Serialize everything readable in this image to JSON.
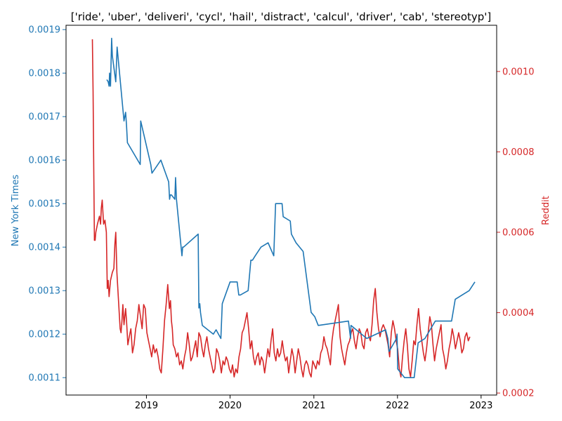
{
  "chart_data": {
    "type": "line",
    "title": "['ride', 'uber', 'deliveri', 'cycl', 'hail', 'distract', 'calcul', 'driver', 'cab', 'stereotyp']",
    "xlabel": "",
    "x_ticks": [
      "2019",
      "2020",
      "2021",
      "2022",
      "2023"
    ],
    "xlim": [
      "2018-01-15",
      "2023-03-10"
    ],
    "left_axis": {
      "label": "New York Times",
      "color": "#1f77b4",
      "ylim": [
        0.00106,
        0.00191
      ],
      "ticks": [
        "0.0011",
        "0.0012",
        "0.0013",
        "0.0014",
        "0.0015",
        "0.0016",
        "0.0017",
        "0.0018",
        "0.0019"
      ]
    },
    "right_axis": {
      "label": "Reddit",
      "color": "#d62728",
      "ylim": [
        0.000195,
        0.001115
      ],
      "ticks": [
        "0.0002",
        "0.0004",
        "0.0006",
        "0.0008",
        "0.0010"
      ]
    },
    "grid": false,
    "series": [
      {
        "name": "New York Times",
        "axis": "left",
        "color": "#1f77b4",
        "x": [
          "2018-07-12",
          "2018-07-18",
          "2018-07-22",
          "2018-07-24",
          "2018-07-26",
          "2018-07-28",
          "2018-08-02",
          "2018-08-05",
          "2018-08-20",
          "2018-08-26",
          "2018-09-25",
          "2018-10-02",
          "2018-10-06",
          "2018-10-10",
          "2018-12-05",
          "2018-12-07",
          "2019-01-20",
          "2019-01-25",
          "2019-03-05",
          "2019-04-08",
          "2019-04-12",
          "2019-04-15",
          "2019-04-20",
          "2019-05-05",
          "2019-05-08",
          "2019-05-12",
          "2019-06-05",
          "2019-06-08",
          "2019-06-12",
          "2019-08-15",
          "2019-08-18",
          "2019-08-22",
          "2019-08-25",
          "2019-09-02",
          "2019-10-20",
          "2019-11-01",
          "2019-11-22",
          "2019-11-28",
          "2020-01-01",
          "2020-02-01",
          "2020-02-08",
          "2020-02-15",
          "2020-03-20",
          "2020-04-01",
          "2020-04-08",
          "2020-04-20",
          "2020-05-15",
          "2020-06-15",
          "2020-07-10",
          "2020-07-18",
          "2020-08-15",
          "2020-08-20",
          "2020-09-20",
          "2020-09-25",
          "2020-10-15",
          "2020-11-15",
          "2020-12-20",
          "2021-01-05",
          "2021-01-20",
          "2021-06-01",
          "2021-06-10",
          "2021-06-12",
          "2021-08-20",
          "2021-11-10",
          "2021-11-20",
          "2021-11-25",
          "2021-12-28",
          "2021-12-30",
          "2022-01-02",
          "2022-02-01",
          "2022-03-15",
          "2022-04-01",
          "2022-05-01",
          "2022-06-15",
          "2022-08-25",
          "2022-09-10",
          "2022-10-10",
          "2022-11-10",
          "2022-12-05"
        ],
        "y": [
          0.001785,
          0.00178,
          0.00177,
          0.0018,
          0.00178,
          0.00177,
          0.00188,
          0.00184,
          0.00178,
          0.00186,
          0.00169,
          0.00171,
          0.00168,
          0.00164,
          0.00159,
          0.00169,
          0.00159,
          0.00157,
          0.0016,
          0.00155,
          0.00151,
          0.00152,
          0.00152,
          0.00151,
          0.00156,
          0.00151,
          0.00138,
          0.0014,
          0.0014,
          0.00143,
          0.00126,
          0.00127,
          0.00125,
          0.00122,
          0.0012,
          0.00121,
          0.00119,
          0.00127,
          0.00132,
          0.00132,
          0.00129,
          0.00129,
          0.0013,
          0.00137,
          0.00137,
          0.00138,
          0.0014,
          0.00141,
          0.00138,
          0.0015,
          0.0015,
          0.00147,
          0.00146,
          0.00143,
          0.00141,
          0.00139,
          0.00125,
          0.00124,
          0.00122,
          0.00123,
          0.00119,
          0.00122,
          0.00119,
          0.00121,
          0.00119,
          0.00116,
          0.00119,
          0.0012,
          0.00112,
          0.0011,
          0.0011,
          0.00118,
          0.00119,
          0.00123,
          0.00123,
          0.00128,
          0.00129,
          0.0013,
          0.00132
        ]
      },
      {
        "name": "Reddit",
        "axis": "right",
        "color": "#d62728",
        "x": [
          "2018-05-10",
          "2018-05-13",
          "2018-05-16",
          "2018-05-19",
          "2018-05-22",
          "2018-05-25",
          "2018-06-01",
          "2018-06-10",
          "2018-06-15",
          "2018-06-18",
          "2018-06-22",
          "2018-06-28",
          "2018-07-04",
          "2018-07-10",
          "2018-07-14",
          "2018-07-18",
          "2018-07-22",
          "2018-07-28",
          "2018-08-05",
          "2018-08-12",
          "2018-08-16",
          "2018-08-20",
          "2018-08-25",
          "2018-09-01",
          "2018-09-08",
          "2018-09-12",
          "2018-09-16",
          "2018-09-20",
          "2018-09-25",
          "2018-10-02",
          "2018-10-06",
          "2018-10-12",
          "2018-10-18",
          "2018-10-25",
          "2018-11-01",
          "2018-11-08",
          "2018-11-15",
          "2018-11-22",
          "2018-11-29",
          "2018-12-06",
          "2018-12-13",
          "2018-12-20",
          "2018-12-27",
          "2019-01-03",
          "2019-01-10",
          "2019-01-17",
          "2019-01-24",
          "2019-01-31",
          "2019-02-07",
          "2019-02-14",
          "2019-02-21",
          "2019-02-28",
          "2019-03-07",
          "2019-03-14",
          "2019-03-21",
          "2019-03-28",
          "2019-04-04",
          "2019-04-11",
          "2019-04-16",
          "2019-04-20",
          "2019-04-24",
          "2019-04-28",
          "2019-05-05",
          "2019-05-12",
          "2019-05-19",
          "2019-05-26",
          "2019-06-02",
          "2019-06-09",
          "2019-06-16",
          "2019-06-23",
          "2019-06-30",
          "2019-07-07",
          "2019-07-14",
          "2019-07-21",
          "2019-07-28",
          "2019-08-04",
          "2019-08-11",
          "2019-08-18",
          "2019-08-25",
          "2019-09-01",
          "2019-09-08",
          "2019-09-15",
          "2019-09-22",
          "2019-09-29",
          "2019-10-06",
          "2019-10-13",
          "2019-10-20",
          "2019-10-27",
          "2019-11-03",
          "2019-11-10",
          "2019-11-17",
          "2019-11-24",
          "2019-12-01",
          "2019-12-08",
          "2019-12-15",
          "2019-12-22",
          "2019-12-29",
          "2020-01-05",
          "2020-01-12",
          "2020-01-19",
          "2020-01-26",
          "2020-02-02",
          "2020-02-09",
          "2020-02-16",
          "2020-02-23",
          "2020-03-01",
          "2020-03-08",
          "2020-03-15",
          "2020-03-22",
          "2020-03-29",
          "2020-04-05",
          "2020-04-12",
          "2020-04-19",
          "2020-04-26",
          "2020-05-03",
          "2020-05-10",
          "2020-05-17",
          "2020-05-24",
          "2020-05-31",
          "2020-06-07",
          "2020-06-14",
          "2020-06-21",
          "2020-06-28",
          "2020-07-05",
          "2020-07-12",
          "2020-07-19",
          "2020-07-26",
          "2020-08-02",
          "2020-08-09",
          "2020-08-16",
          "2020-08-23",
          "2020-08-30",
          "2020-09-06",
          "2020-09-13",
          "2020-09-20",
          "2020-09-27",
          "2020-10-04",
          "2020-10-11",
          "2020-10-18",
          "2020-10-25",
          "2020-11-01",
          "2020-11-08",
          "2020-11-15",
          "2020-11-22",
          "2020-11-29",
          "2020-12-06",
          "2020-12-13",
          "2020-12-20",
          "2020-12-27",
          "2021-01-03",
          "2021-01-10",
          "2021-01-17",
          "2021-01-24",
          "2021-01-31",
          "2021-02-07",
          "2021-02-14",
          "2021-02-21",
          "2021-02-28",
          "2021-03-07",
          "2021-03-14",
          "2021-03-21",
          "2021-03-28",
          "2021-04-04",
          "2021-04-11",
          "2021-04-18",
          "2021-04-25",
          "2021-05-02",
          "2021-05-09",
          "2021-05-16",
          "2021-05-23",
          "2021-05-30",
          "2021-06-06",
          "2021-06-13",
          "2021-06-20",
          "2021-06-27",
          "2021-07-04",
          "2021-07-11",
          "2021-07-18",
          "2021-07-25",
          "2021-08-01",
          "2021-08-08",
          "2021-08-15",
          "2021-08-22",
          "2021-08-29",
          "2021-09-05",
          "2021-09-12",
          "2021-09-19",
          "2021-09-26",
          "2021-10-03",
          "2021-10-10",
          "2021-10-17",
          "2021-10-24",
          "2021-10-31",
          "2021-11-07",
          "2021-11-14",
          "2021-11-21",
          "2021-11-28",
          "2021-12-05",
          "2021-12-12",
          "2021-12-19",
          "2021-12-26",
          "2022-01-02",
          "2022-01-09",
          "2022-01-16",
          "2022-01-23",
          "2022-01-30",
          "2022-02-06",
          "2022-02-13",
          "2022-02-20",
          "2022-02-27",
          "2022-03-06",
          "2022-03-13",
          "2022-03-20",
          "2022-03-27",
          "2022-04-03",
          "2022-04-10",
          "2022-04-17",
          "2022-04-24",
          "2022-05-01",
          "2022-05-08",
          "2022-05-15",
          "2022-05-22",
          "2022-05-29",
          "2022-06-05",
          "2022-06-12",
          "2022-06-19",
          "2022-06-26",
          "2022-07-03",
          "2022-07-10",
          "2022-07-17",
          "2022-07-24",
          "2022-07-31",
          "2022-08-07",
          "2022-08-14",
          "2022-08-21",
          "2022-08-28",
          "2022-09-04",
          "2022-09-11",
          "2022-09-18",
          "2022-09-25",
          "2022-10-02",
          "2022-10-09",
          "2022-10-16",
          "2022-10-23",
          "2022-10-30",
          "2022-11-06",
          "2022-11-13"
        ],
        "y": [
          0.00108,
          0.00095,
          0.00075,
          0.00058,
          0.00058,
          0.0006,
          0.00062,
          0.00064,
          0.00062,
          0.00066,
          0.00068,
          0.00062,
          0.00063,
          0.0006,
          0.00046,
          0.00048,
          0.00044,
          0.00048,
          0.0005,
          0.00051,
          0.00057,
          0.0006,
          0.0005,
          0.00043,
          0.00036,
          0.00035,
          0.00038,
          0.00042,
          0.00037,
          0.00041,
          0.00038,
          0.00032,
          0.00034,
          0.00036,
          0.0003,
          0.00032,
          0.00036,
          0.00038,
          0.00042,
          0.00039,
          0.00036,
          0.00042,
          0.00041,
          0.00035,
          0.00033,
          0.00031,
          0.00029,
          0.00032,
          0.0003,
          0.00031,
          0.00029,
          0.00026,
          0.00025,
          0.00031,
          0.00038,
          0.00042,
          0.00047,
          0.00041,
          0.00043,
          0.00038,
          0.00036,
          0.00032,
          0.00031,
          0.00029,
          0.0003,
          0.00027,
          0.00028,
          0.00026,
          0.00029,
          0.00031,
          0.00035,
          0.00032,
          0.00028,
          0.00029,
          0.00031,
          0.00033,
          0.00029,
          0.00035,
          0.00034,
          0.00031,
          0.00029,
          0.00032,
          0.00034,
          0.00031,
          0.00029,
          0.00027,
          0.00025,
          0.00026,
          0.00031,
          0.0003,
          0.00028,
          0.00025,
          0.00028,
          0.00027,
          0.00029,
          0.00028,
          0.00026,
          0.00025,
          0.00027,
          0.00024,
          0.00026,
          0.00025,
          0.00029,
          0.00031,
          0.00035,
          0.00036,
          0.00038,
          0.0004,
          0.00036,
          0.00031,
          0.00033,
          0.00029,
          0.00027,
          0.00029,
          0.0003,
          0.00027,
          0.00029,
          0.00028,
          0.00025,
          0.00028,
          0.00031,
          0.00029,
          0.00033,
          0.00036,
          0.0003,
          0.00028,
          0.00031,
          0.00029,
          0.0003,
          0.00033,
          0.0003,
          0.00028,
          0.00029,
          0.00025,
          0.00028,
          0.00031,
          0.00029,
          0.00025,
          0.00028,
          0.00031,
          0.00029,
          0.00026,
          0.00024,
          0.00027,
          0.00028,
          0.00027,
          0.00025,
          0.00024,
          0.00028,
          0.00027,
          0.00026,
          0.00028,
          0.00027,
          0.0003,
          0.00031,
          0.00034,
          0.00032,
          0.00031,
          0.00029,
          0.00027,
          0.00033,
          0.00036,
          0.00038,
          0.0004,
          0.00042,
          0.00034,
          0.00031,
          0.00029,
          0.00027,
          0.0003,
          0.00032,
          0.00033,
          0.00035,
          0.00036,
          0.00033,
          0.00031,
          0.00034,
          0.00036,
          0.00035,
          0.00032,
          0.00031,
          0.00035,
          0.00036,
          0.00034,
          0.00033,
          0.00037,
          0.00043,
          0.00046,
          0.0004,
          0.00036,
          0.00034,
          0.00036,
          0.00037,
          0.00036,
          0.00034,
          0.00032,
          0.00029,
          0.00035,
          0.00038,
          0.00036,
          0.00033,
          0.00031,
          0.00026,
          0.00024,
          0.00029,
          0.00033,
          0.00036,
          0.00032,
          0.00026,
          0.00024,
          0.00028,
          0.00033,
          0.00032,
          0.00037,
          0.00041,
          0.00036,
          0.00033,
          0.0003,
          0.00028,
          0.00031,
          0.00035,
          0.00039,
          0.00037,
          0.00032,
          0.00028,
          0.00031,
          0.00033,
          0.00035,
          0.00037,
          0.00031,
          0.00029,
          0.00026,
          0.00028,
          0.00031,
          0.00033,
          0.00036,
          0.00034,
          0.00031,
          0.00033,
          0.00035,
          0.00033,
          0.0003,
          0.00031,
          0.00034,
          0.00035,
          0.00033,
          0.00034
        ]
      }
    ]
  }
}
